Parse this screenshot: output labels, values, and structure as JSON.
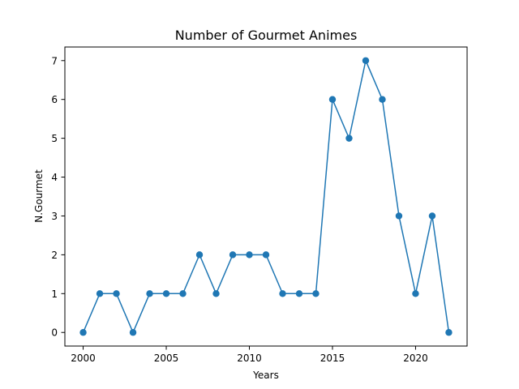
{
  "chart_data": {
    "type": "line",
    "title": "Number of Gourmet Animes",
    "xlabel": "Years",
    "ylabel": "N.Gourmet",
    "x": [
      2000,
      2001,
      2002,
      2003,
      2004,
      2005,
      2006,
      2007,
      2008,
      2009,
      2010,
      2011,
      2012,
      2013,
      2014,
      2015,
      2016,
      2017,
      2018,
      2019,
      2020,
      2021,
      2022
    ],
    "series": [
      {
        "values": [
          0,
          1,
          1,
          0,
          1,
          1,
          1,
          2,
          1,
          2,
          2,
          2,
          1,
          1,
          1,
          6,
          5,
          7,
          6,
          3,
          1,
          3,
          0
        ],
        "color": "#1f77b4",
        "marker": "circle"
      }
    ],
    "xlim": [
      1998.9,
      2023.1
    ],
    "ylim": [
      -0.35,
      7.35
    ],
    "xticks": [
      2000,
      2005,
      2010,
      2015,
      2020
    ],
    "yticks": [
      0,
      1,
      2,
      3,
      4,
      5,
      6,
      7
    ],
    "grid": false,
    "legend": "none"
  }
}
